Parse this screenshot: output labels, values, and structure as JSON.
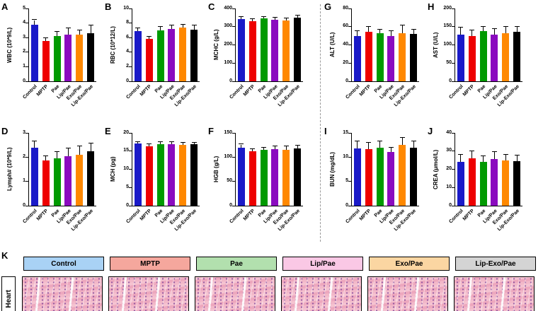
{
  "figure": {
    "groups": [
      "Control",
      "MPTP",
      "Pae",
      "Lip/Pae",
      "Exo/Pae",
      "Lip-Exo/Pae"
    ],
    "bar_colors": [
      "#1a1ac8",
      "#ee0000",
      "#009a00",
      "#8a0bbf",
      "#ff8800",
      "#000000"
    ]
  },
  "chart_data": [
    {
      "panel": "A",
      "type": "bar",
      "ylabel": "WBC (10*9/L)",
      "ylim": [
        0,
        5
      ],
      "yticks": [
        0,
        1,
        2,
        3,
        4,
        5
      ],
      "categories": [
        "Control",
        "MPTP",
        "Pae",
        "Lip/Pae",
        "Exo/Pae",
        "Lip-Exo/Pae"
      ],
      "values": [
        3.9,
        2.75,
        3.1,
        3.2,
        3.2,
        3.3
      ],
      "errors": [
        0.3,
        0.2,
        0.3,
        0.45,
        0.3,
        0.55
      ]
    },
    {
      "panel": "B",
      "type": "bar",
      "ylabel": "RBC (10*12/L)",
      "ylim": [
        0,
        10
      ],
      "yticks": [
        0,
        2,
        4,
        6,
        8,
        10
      ],
      "categories": [
        "Control",
        "MPTP",
        "Pae",
        "Lip/Pae",
        "Exo/Pae",
        "Lip-Exo/Pae"
      ],
      "values": [
        6.9,
        5.8,
        7.0,
        7.2,
        7.4,
        7.1
      ],
      "errors": [
        0.4,
        0.3,
        0.5,
        0.5,
        0.4,
        0.6
      ]
    },
    {
      "panel": "C",
      "type": "bar",
      "ylabel": "MCHC (g/L)",
      "ylim": [
        0,
        400
      ],
      "yticks": [
        0,
        100,
        200,
        300,
        400
      ],
      "categories": [
        "Control",
        "MPTP",
        "Pae",
        "Lip/Pae",
        "Exo/Pae",
        "Lip-Exo/Pae"
      ],
      "values": [
        340,
        332,
        345,
        338,
        335,
        350
      ],
      "errors": [
        15,
        10,
        8,
        12,
        10,
        12
      ]
    },
    {
      "panel": "G",
      "type": "bar",
      "ylabel": "ALT (U/L)",
      "ylim": [
        0,
        80
      ],
      "yticks": [
        0,
        20,
        40,
        60,
        80
      ],
      "categories": [
        "Control",
        "MPTP",
        "Pae",
        "Lip/Pae",
        "Exo/Pae",
        "Lip-Exo/Pae"
      ],
      "values": [
        50,
        54,
        53,
        50,
        53,
        52
      ],
      "errors": [
        5,
        6,
        4,
        5,
        8,
        5
      ]
    },
    {
      "panel": "H",
      "type": "bar",
      "ylabel": "AST (U/L)",
      "ylim": [
        0,
        200
      ],
      "yticks": [
        0,
        50,
        100,
        150,
        200
      ],
      "categories": [
        "Control",
        "MPTP",
        "Pae",
        "Lip/Pae",
        "Exo/Pae",
        "Lip-Exo/Pae"
      ],
      "values": [
        128,
        125,
        137,
        128,
        132,
        135
      ],
      "errors": [
        20,
        15,
        12,
        15,
        18,
        15
      ]
    },
    {
      "panel": "D",
      "type": "bar",
      "ylabel": "Lymph# (10*9/L)",
      "ylim": [
        0,
        3
      ],
      "yticks": [
        0,
        1,
        2,
        3
      ],
      "categories": [
        "Control",
        "MPTP",
        "Pae",
        "Lip/Pae",
        "Exo/Pae",
        "Lip-Exo/Pae"
      ],
      "values": [
        2.4,
        1.85,
        1.95,
        2.05,
        2.1,
        2.25
      ],
      "errors": [
        0.25,
        0.2,
        0.25,
        0.3,
        0.35,
        0.3
      ]
    },
    {
      "panel": "E",
      "type": "bar",
      "ylabel": "MCH (pg)",
      "ylim": [
        0,
        20
      ],
      "yticks": [
        0,
        5,
        10,
        15,
        20
      ],
      "categories": [
        "Control",
        "MPTP",
        "Pae",
        "Lip/Pae",
        "Exo/Pae",
        "Lip-Exo/Pae"
      ],
      "values": [
        17,
        16.4,
        16.8,
        16.9,
        16.7,
        16.8
      ],
      "errors": [
        0.5,
        0.5,
        0.6,
        0.5,
        0.6,
        0.4
      ]
    },
    {
      "panel": "F",
      "type": "bar",
      "ylabel": "HGB (g/L)",
      "ylim": [
        0,
        150
      ],
      "yticks": [
        0,
        50,
        100,
        150
      ],
      "categories": [
        "Control",
        "MPTP",
        "Pae",
        "Lip/Pae",
        "Exo/Pae",
        "Lip-Exo/Pae"
      ],
      "values": [
        120,
        112,
        115,
        116,
        115,
        118
      ],
      "errors": [
        6,
        5,
        5,
        6,
        8,
        6
      ]
    },
    {
      "panel": "I",
      "type": "bar",
      "ylabel": "BUN (mg/dL)",
      "ylim": [
        0,
        15
      ],
      "yticks": [
        0,
        5,
        10,
        15
      ],
      "categories": [
        "Control",
        "MPTP",
        "Pae",
        "Lip/Pae",
        "Exo/Pae",
        "Lip-Exo/Pae"
      ],
      "values": [
        11.8,
        11.7,
        12,
        11,
        12.5,
        12
      ],
      "errors": [
        1.5,
        1.2,
        1.3,
        1.0,
        1.5,
        1.2
      ]
    },
    {
      "panel": "J",
      "type": "bar",
      "ylabel": "CREA (μmol/L)",
      "ylim": [
        0,
        40
      ],
      "yticks": [
        0,
        10,
        20,
        30,
        40
      ],
      "categories": [
        "Control",
        "MPTP",
        "Pae",
        "Lip/Pae",
        "Exo/Pae",
        "Lip-Exo/Pae"
      ],
      "values": [
        24,
        26,
        24,
        25.5,
        25,
        24.5
      ],
      "errors": [
        4,
        4,
        3,
        4,
        3,
        3
      ]
    }
  ],
  "panel_k": {
    "label": "K",
    "row_label": "Heart",
    "headers": [
      {
        "label": "Control",
        "color": "#a9d2f5"
      },
      {
        "label": "MPTP",
        "color": "#f5a79d"
      },
      {
        "label": "Pae",
        "color": "#b2e0ae"
      },
      {
        "label": "Lip/Pae",
        "color": "#fac8e5"
      },
      {
        "label": "Exo/Pae",
        "color": "#fbd6a2"
      },
      {
        "label": "Lip-Exo/Pae",
        "color": "#d4d4d4"
      }
    ]
  }
}
